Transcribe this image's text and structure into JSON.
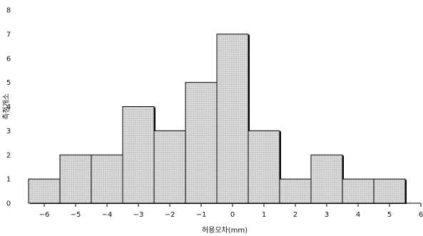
{
  "chart_data": {
    "type": "bar",
    "title": "",
    "xlabel": "허용오차(mm)",
    "ylabel": "측정개소",
    "x_ticks": [
      "-6",
      "-5",
      "-4",
      "-3",
      "-2",
      "-1",
      "0",
      "1",
      "2",
      "3",
      "4",
      "5",
      "6"
    ],
    "y_ticks": [
      "0",
      "1",
      "2",
      "3",
      "4",
      "5",
      "6",
      "7",
      "8"
    ],
    "categories": [
      "-6",
      "-5",
      "-4",
      "-3",
      "-2",
      "-1",
      "0",
      "1",
      "2",
      "3",
      "4",
      "5"
    ],
    "values": [
      1,
      2,
      2,
      4,
      3,
      5,
      7,
      3,
      1,
      2,
      1,
      1
    ],
    "xlim": [
      -6.5,
      6
    ],
    "ylim": [
      0,
      8
    ],
    "bar_width": 1,
    "grid": false,
    "bar_fill": "#d4d4d4",
    "bar_stroke": "#000000"
  }
}
